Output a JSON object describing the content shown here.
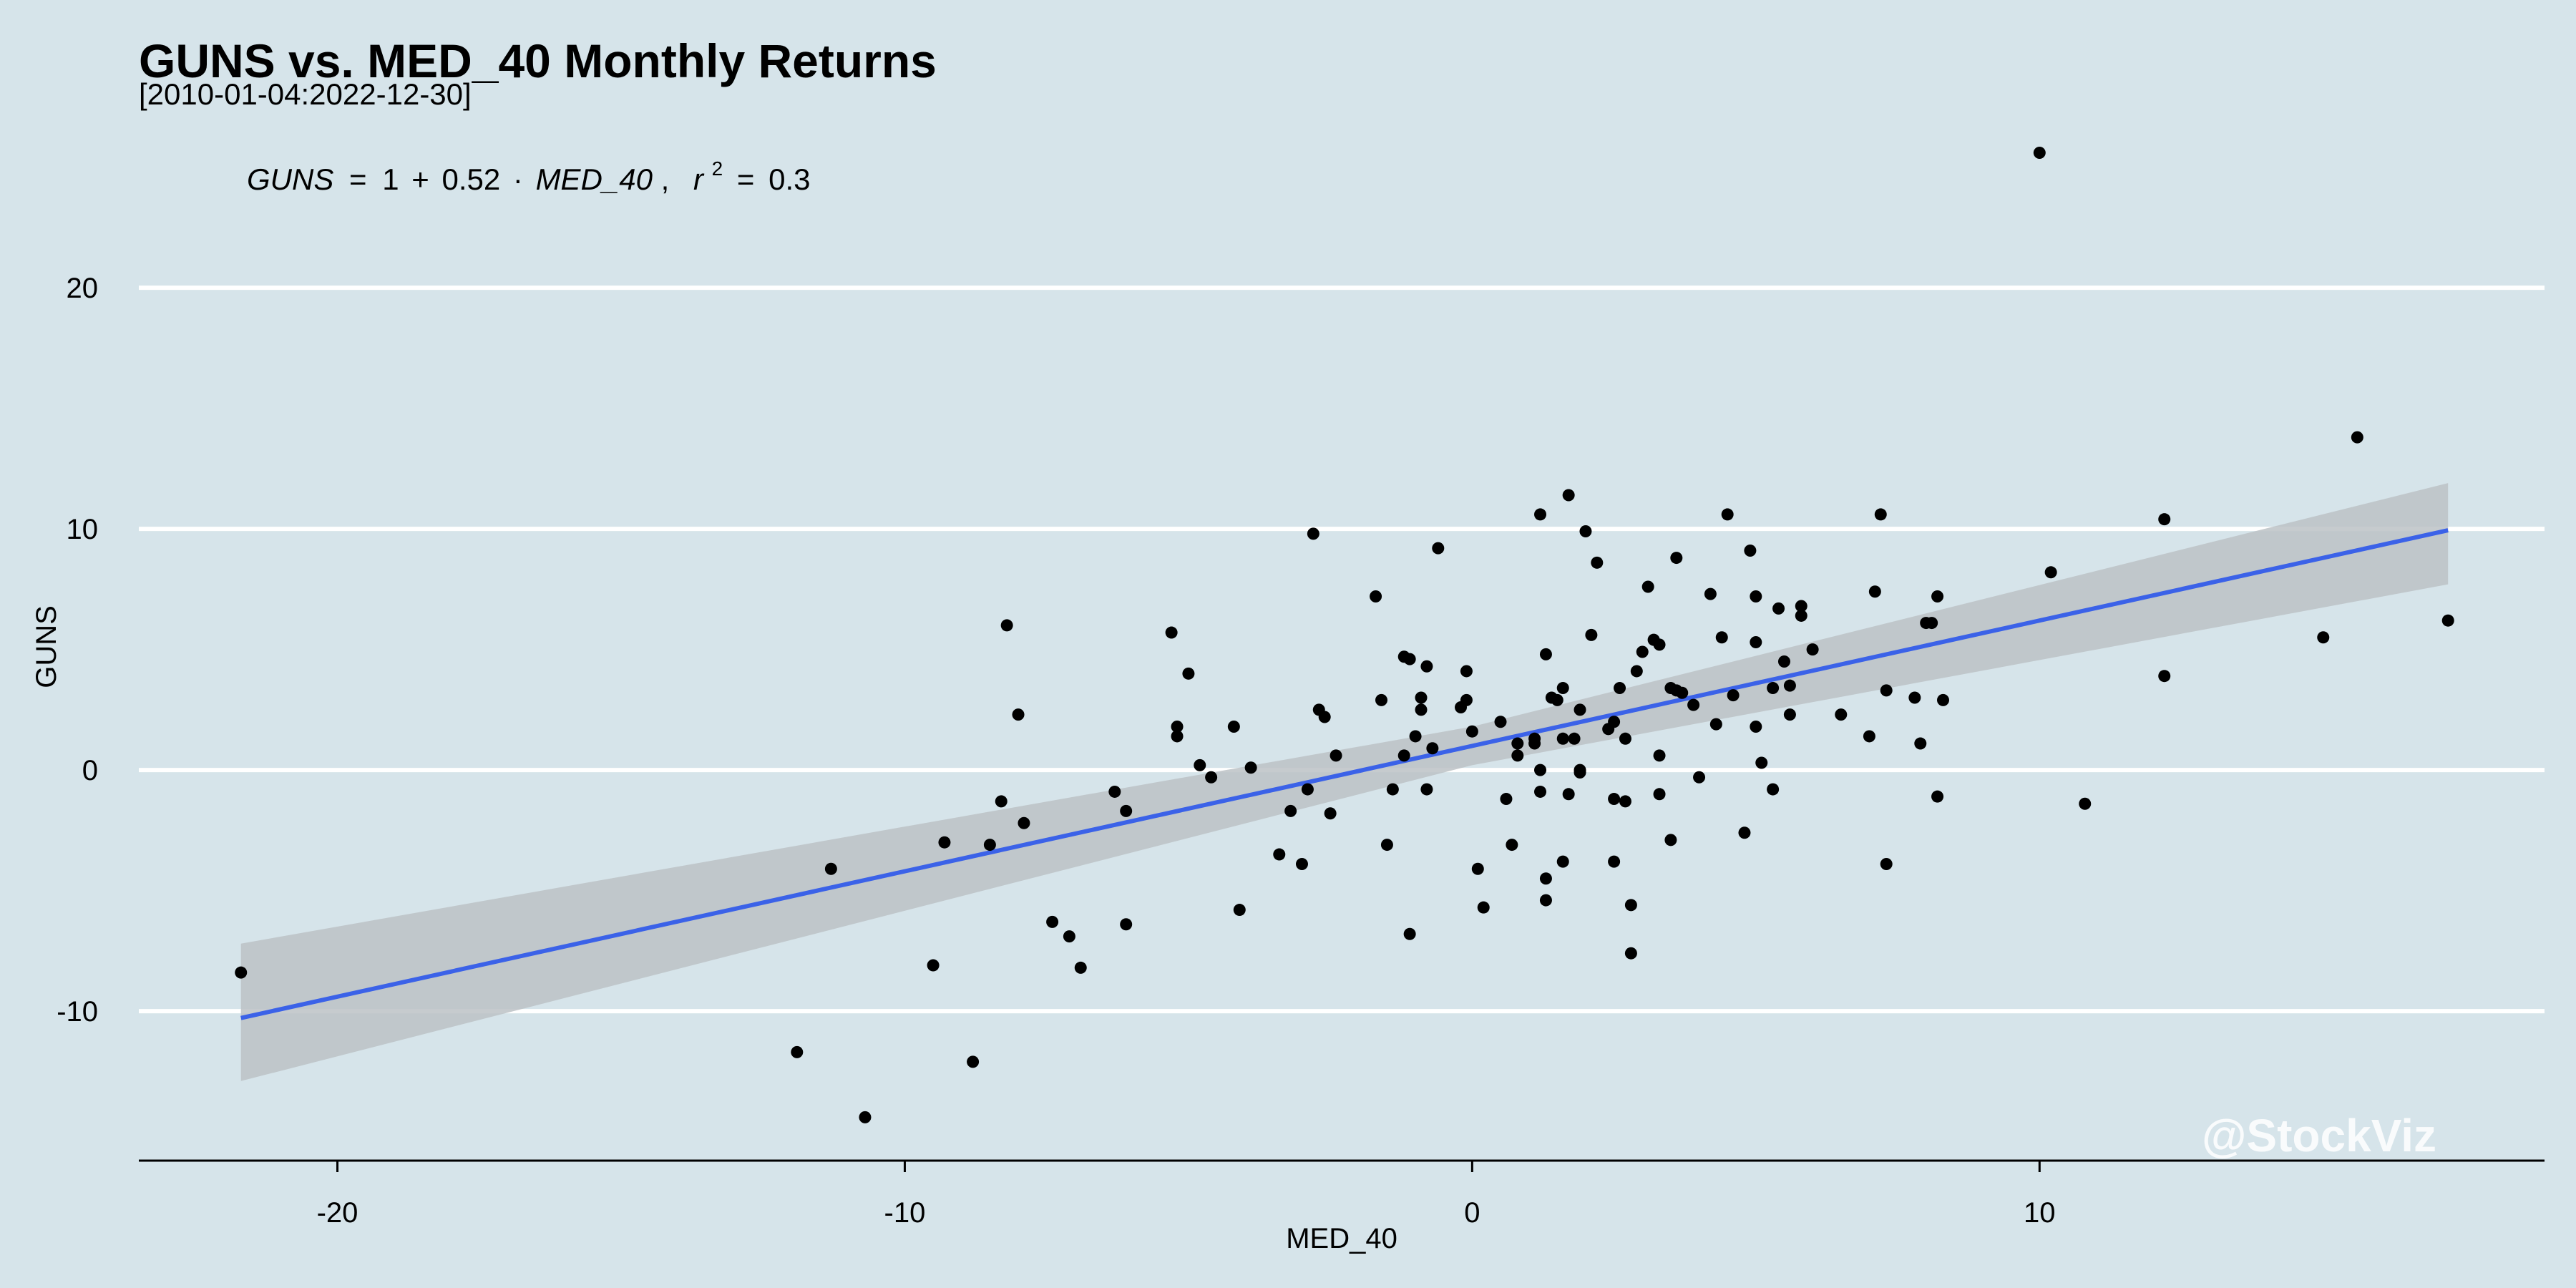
{
  "chart_data": {
    "type": "scatter",
    "title": "GUNS vs. MED_40 Monthly Returns",
    "subtitle": "[2010-01-04:2022-12-30]",
    "xlabel": "MED_40",
    "ylabel": "GUNS",
    "xlim": [
      -23.5,
      18.9
    ],
    "ylim": [
      -16.2,
      26.0
    ],
    "xticks": [
      -20,
      -10,
      0,
      10
    ],
    "yticks": [
      -10,
      0,
      10,
      20
    ],
    "grid": "horizontal",
    "equation": {
      "lhs": "GUNS",
      "eq_sign": "=",
      "intercept": "1",
      "plus": "+",
      "slope": "0.52",
      "dot": "·",
      "var": "MED_40",
      "comma": ",",
      "r_label": "r",
      "r_exp": "2",
      "r_eq": "=",
      "r_value": "0.3"
    },
    "regression": {
      "intercept": 1.0,
      "slope": 0.52,
      "x_range": [
        -21.7,
        17.2
      ],
      "line_color": "#3b62e8",
      "band_color": "#bcc2c6",
      "band": [
        {
          "x": -21.7,
          "lo": -12.9,
          "hi": -7.2
        },
        {
          "x": 0.0,
          "lo": 0.2,
          "hi": 1.8
        },
        {
          "x": 17.2,
          "lo": 7.7,
          "hi": 11.9
        }
      ]
    },
    "point_color": "#000000",
    "watermark": "@StockViz",
    "points": [
      [
        -21.7,
        -8.4
      ],
      [
        -11.9,
        -11.7
      ],
      [
        -11.3,
        -4.1
      ],
      [
        -10.7,
        -14.4
      ],
      [
        -9.5,
        -8.1
      ],
      [
        -9.3,
        -3.0
      ],
      [
        -8.8,
        -12.1
      ],
      [
        -8.5,
        -3.1
      ],
      [
        -8.3,
        -1.3
      ],
      [
        -8.2,
        6.0
      ],
      [
        -8.0,
        2.3
      ],
      [
        -7.9,
        -2.2
      ],
      [
        -7.4,
        -6.3
      ],
      [
        -7.1,
        -6.9
      ],
      [
        -6.9,
        -8.2
      ],
      [
        -6.3,
        -0.9
      ],
      [
        -6.1,
        -6.4
      ],
      [
        -6.1,
        -1.7
      ],
      [
        -5.3,
        5.7
      ],
      [
        -5.2,
        1.8
      ],
      [
        -5.2,
        1.4
      ],
      [
        -5.0,
        4.0
      ],
      [
        -4.8,
        0.2
      ],
      [
        -4.6,
        -0.3
      ],
      [
        -4.2,
        1.8
      ],
      [
        -4.1,
        -5.8
      ],
      [
        -3.9,
        0.1
      ],
      [
        -3.4,
        -3.5
      ],
      [
        -3.2,
        -1.7
      ],
      [
        -3.0,
        -3.9
      ],
      [
        -2.9,
        -0.8
      ],
      [
        -2.8,
        9.8
      ],
      [
        -2.7,
        2.5
      ],
      [
        -2.6,
        2.2
      ],
      [
        -2.5,
        -1.8
      ],
      [
        -2.4,
        0.6
      ],
      [
        -1.7,
        7.2
      ],
      [
        -1.6,
        2.9
      ],
      [
        -1.5,
        -3.1
      ],
      [
        -1.4,
        -0.8
      ],
      [
        -1.2,
        0.6
      ],
      [
        -1.2,
        4.7
      ],
      [
        -1.1,
        4.6
      ],
      [
        -1.1,
        -6.8
      ],
      [
        -1.0,
        1.4
      ],
      [
        -0.9,
        2.5
      ],
      [
        -0.9,
        3.0
      ],
      [
        -0.8,
        4.3
      ],
      [
        -0.8,
        -0.8
      ],
      [
        -0.7,
        0.9
      ],
      [
        -0.6,
        9.2
      ],
      [
        -0.2,
        2.6
      ],
      [
        -0.1,
        2.9
      ],
      [
        -0.1,
        4.1
      ],
      [
        0.0,
        1.6
      ],
      [
        0.1,
        -4.1
      ],
      [
        0.2,
        -5.7
      ],
      [
        0.5,
        2.0
      ],
      [
        0.6,
        -1.2
      ],
      [
        0.7,
        -3.1
      ],
      [
        0.8,
        0.6
      ],
      [
        0.8,
        1.1
      ],
      [
        1.1,
        1.3
      ],
      [
        1.1,
        1.1
      ],
      [
        1.2,
        10.6
      ],
      [
        1.2,
        0.0
      ],
      [
        1.2,
        -0.9
      ],
      [
        1.3,
        4.8
      ],
      [
        1.3,
        -4.5
      ],
      [
        1.3,
        -5.4
      ],
      [
        1.4,
        3.0
      ],
      [
        1.5,
        2.9
      ],
      [
        1.6,
        1.3
      ],
      [
        1.6,
        3.4
      ],
      [
        1.6,
        -3.8
      ],
      [
        1.7,
        -1.0
      ],
      [
        1.7,
        11.4
      ],
      [
        1.8,
        1.3
      ],
      [
        1.9,
        2.5
      ],
      [
        1.9,
        -0.1
      ],
      [
        1.9,
        0.0
      ],
      [
        2.0,
        9.9
      ],
      [
        2.1,
        5.6
      ],
      [
        2.2,
        8.6
      ],
      [
        2.4,
        1.7
      ],
      [
        2.5,
        2.0
      ],
      [
        2.5,
        -3.8
      ],
      [
        2.5,
        -1.2
      ],
      [
        2.6,
        3.4
      ],
      [
        2.7,
        1.3
      ],
      [
        2.7,
        -1.3
      ],
      [
        2.8,
        -7.6
      ],
      [
        2.8,
        -5.6
      ],
      [
        2.9,
        4.1
      ],
      [
        3.0,
        4.9
      ],
      [
        3.1,
        7.6
      ],
      [
        3.2,
        5.4
      ],
      [
        3.3,
        5.2
      ],
      [
        3.3,
        0.6
      ],
      [
        3.3,
        -1.0
      ],
      [
        3.5,
        3.4
      ],
      [
        3.5,
        -2.9
      ],
      [
        3.6,
        8.8
      ],
      [
        3.6,
        3.3
      ],
      [
        3.7,
        3.2
      ],
      [
        3.9,
        2.7
      ],
      [
        4.0,
        -0.3
      ],
      [
        4.2,
        7.3
      ],
      [
        4.3,
        1.9
      ],
      [
        4.4,
        5.5
      ],
      [
        4.5,
        10.6
      ],
      [
        4.6,
        3.1
      ],
      [
        4.8,
        -2.6
      ],
      [
        4.9,
        9.1
      ],
      [
        5.0,
        7.2
      ],
      [
        5.0,
        5.3
      ],
      [
        5.0,
        1.8
      ],
      [
        5.1,
        0.3
      ],
      [
        5.3,
        3.4
      ],
      [
        5.3,
        -0.8
      ],
      [
        5.4,
        6.7
      ],
      [
        5.5,
        4.5
      ],
      [
        5.6,
        3.5
      ],
      [
        5.6,
        2.3
      ],
      [
        5.8,
        6.8
      ],
      [
        5.8,
        6.4
      ],
      [
        6.0,
        5.0
      ],
      [
        6.5,
        2.3
      ],
      [
        7.0,
        1.4
      ],
      [
        7.1,
        7.4
      ],
      [
        7.2,
        10.6
      ],
      [
        7.3,
        3.3
      ],
      [
        7.3,
        -3.9
      ],
      [
        7.8,
        3.0
      ],
      [
        7.9,
        1.1
      ],
      [
        8.0,
        6.1
      ],
      [
        8.1,
        6.1
      ],
      [
        8.2,
        7.2
      ],
      [
        8.2,
        -1.1
      ],
      [
        8.3,
        2.9
      ],
      [
        10.0,
        25.6
      ],
      [
        10.2,
        8.2
      ],
      [
        10.8,
        -1.4
      ],
      [
        12.2,
        10.4
      ],
      [
        12.2,
        3.9
      ],
      [
        15.0,
        5.5
      ],
      [
        15.6,
        13.8
      ],
      [
        17.2,
        6.2
      ]
    ]
  }
}
